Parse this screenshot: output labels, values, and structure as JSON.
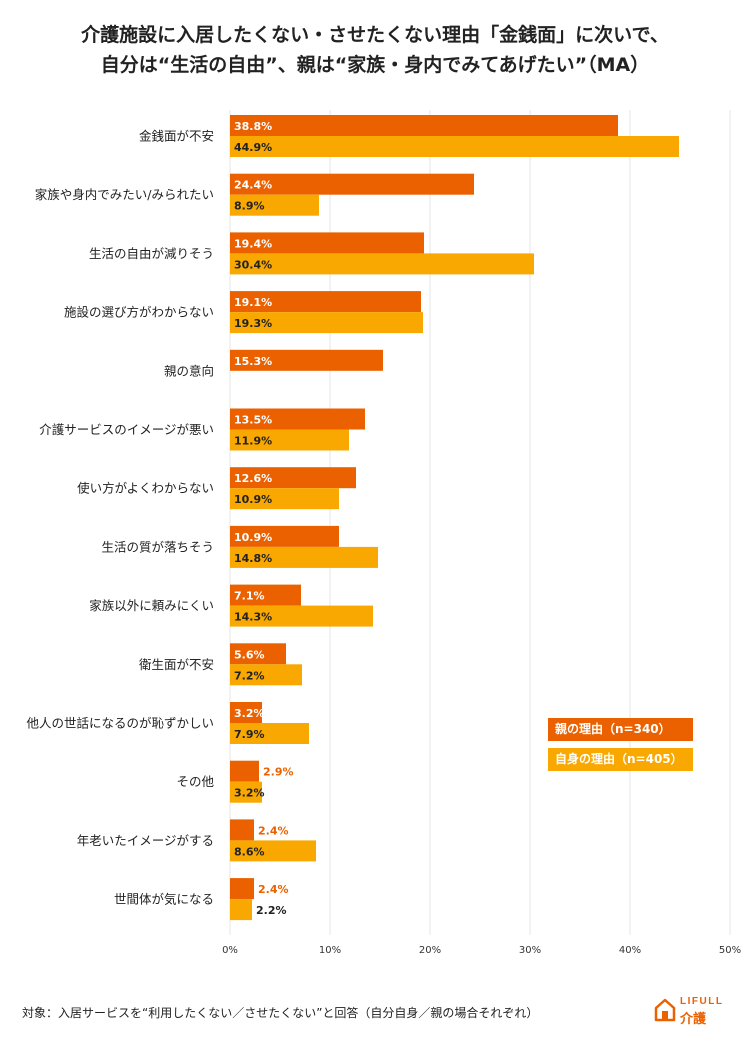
{
  "title_line1": "介護施設に入居したくない・させたくない理由「金銭面」に次いで、",
  "title_line2": "自分は“生活の自由”、親は“家族・身内でみてあげたい”（MA）",
  "footnote": "対象：入居サービスを“利用したくない／させたくない”と回答（自分自身／親の場合それぞれ）",
  "logo": {
    "top": "LIFULL",
    "bottom": "介護",
    "icon": "house-icon"
  },
  "colors": {
    "parent": "#eb6100",
    "self": "#f8a800",
    "grid": "#e6e6e6"
  },
  "chart_data": {
    "type": "bar",
    "orientation": "horizontal",
    "categories": [
      "金銭面が不安",
      "家族や身内でみたい/みられたい",
      "生活の自由が減りそう",
      "施設の選び方がわからない",
      "親の意向",
      "介護サービスのイメージが悪い",
      "使い方がよくわからない",
      "生活の質が落ちそう",
      "家族以外に頼みにくい",
      "衛生面が不安",
      "他人の世話になるのが恥ずかしい",
      "その他",
      "年老いたイメージがする",
      "世間体が気になる"
    ],
    "series": [
      {
        "name": "親の理由（n=340）",
        "color": "#eb6100",
        "values": [
          38.8,
          24.4,
          19.4,
          19.1,
          15.3,
          13.5,
          12.6,
          10.9,
          7.1,
          5.6,
          3.2,
          2.9,
          2.4,
          2.4
        ]
      },
      {
        "name": "自身の理由（n=405）",
        "color": "#f8a800",
        "values": [
          44.9,
          8.9,
          30.4,
          19.3,
          null,
          11.9,
          10.9,
          14.8,
          14.3,
          7.2,
          7.9,
          3.2,
          8.6,
          2.2
        ]
      }
    ],
    "xlim": [
      0,
      50
    ],
    "xticks": [
      "0%",
      "10%",
      "20%",
      "30%",
      "40%",
      "50%"
    ],
    "unit": "%",
    "grid": true,
    "legend_position": "bottom-right"
  }
}
